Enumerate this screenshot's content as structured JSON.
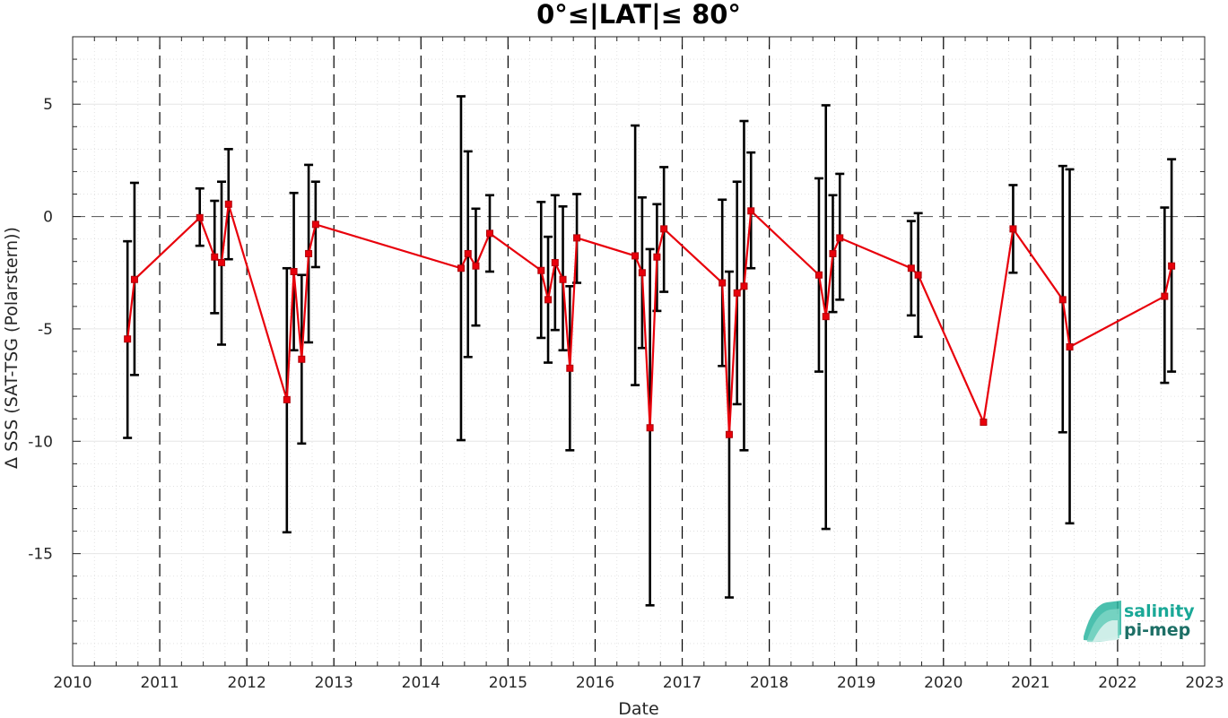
{
  "chart_data": {
    "type": "line",
    "title": "0°≤|LAT|≤ 80°",
    "xlabel": "Date",
    "ylabel": "Δ SSS (SAT-TSG (Polarstern))",
    "xlim": [
      2010,
      2023
    ],
    "ylim": [
      -20,
      8
    ],
    "x_ticks": [
      "2010",
      "2011",
      "2012",
      "2013",
      "2014",
      "2015",
      "2016",
      "2017",
      "2018",
      "2019",
      "2020",
      "2021",
      "2022",
      "2023"
    ],
    "y_ticks": [
      {
        "value": 5,
        "label": "5"
      },
      {
        "value": 0,
        "label": "0"
      },
      {
        "value": -5,
        "label": "-5"
      },
      {
        "value": -10,
        "label": "-10"
      },
      {
        "value": -15,
        "label": "-15"
      }
    ],
    "grid": true,
    "minor_grid": true,
    "zero_reference_line": true,
    "year_boundary_lines": "dashed",
    "colors": {
      "series": "#e8000b",
      "error_bars": "#000000",
      "logo": "#1aa897"
    },
    "series": [
      {
        "marker": "square",
        "points": [
          {
            "x": 2010.63,
            "y": -5.45,
            "lo": -9.85,
            "hi": -1.1
          },
          {
            "x": 2010.71,
            "y": -2.8,
            "lo": -7.05,
            "hi": 1.5
          },
          {
            "x": 2011.46,
            "y": -0.05,
            "lo": -1.3,
            "hi": 1.25
          },
          {
            "x": 2011.63,
            "y": -1.8,
            "lo": -4.3,
            "hi": 0.7
          },
          {
            "x": 2011.71,
            "y": -2.05,
            "lo": -5.7,
            "hi": 1.55
          },
          {
            "x": 2011.79,
            "y": 0.55,
            "lo": -1.9,
            "hi": 3.0
          },
          {
            "x": 2012.46,
            "y": -8.15,
            "lo": -14.05,
            "hi": -2.3
          },
          {
            "x": 2012.54,
            "y": -2.45,
            "lo": -5.95,
            "hi": 1.05
          },
          {
            "x": 2012.63,
            "y": -6.35,
            "lo": -10.1,
            "hi": -2.6
          },
          {
            "x": 2012.71,
            "y": -1.65,
            "lo": -5.6,
            "hi": 2.3
          },
          {
            "x": 2012.79,
            "y": -0.35,
            "lo": -2.25,
            "hi": 1.55
          },
          {
            "x": 2014.46,
            "y": -2.3,
            "lo": -9.95,
            "hi": 5.35
          },
          {
            "x": 2014.54,
            "y": -1.65,
            "lo": -6.25,
            "hi": 2.9
          },
          {
            "x": 2014.63,
            "y": -2.2,
            "lo": -4.85,
            "hi": 0.35
          },
          {
            "x": 2014.79,
            "y": -0.75,
            "lo": -2.45,
            "hi": 0.95
          },
          {
            "x": 2015.38,
            "y": -2.4,
            "lo": -5.4,
            "hi": 0.65
          },
          {
            "x": 2015.46,
            "y": -3.7,
            "lo": -6.5,
            "hi": -0.9
          },
          {
            "x": 2015.54,
            "y": -2.05,
            "lo": -5.05,
            "hi": 0.95
          },
          {
            "x": 2015.63,
            "y": -2.8,
            "lo": -5.95,
            "hi": 0.45
          },
          {
            "x": 2015.71,
            "y": -6.75,
            "lo": -10.4,
            "hi": -3.1
          },
          {
            "x": 2015.79,
            "y": -0.95,
            "lo": -2.95,
            "hi": 1.0
          },
          {
            "x": 2016.46,
            "y": -1.75,
            "lo": -7.5,
            "hi": 4.05
          },
          {
            "x": 2016.54,
            "y": -2.5,
            "lo": -5.85,
            "hi": 0.85
          },
          {
            "x": 2016.63,
            "y": -9.4,
            "lo": -17.3,
            "hi": -1.45
          },
          {
            "x": 2016.71,
            "y": -1.8,
            "lo": -4.2,
            "hi": 0.55
          },
          {
            "x": 2016.79,
            "y": -0.55,
            "lo": -3.35,
            "hi": 2.2
          },
          {
            "x": 2017.46,
            "y": -2.95,
            "lo": -6.65,
            "hi": 0.75
          },
          {
            "x": 2017.54,
            "y": -9.7,
            "lo": -16.95,
            "hi": -2.45
          },
          {
            "x": 2017.63,
            "y": -3.4,
            "lo": -8.35,
            "hi": 1.55
          },
          {
            "x": 2017.71,
            "y": -3.1,
            "lo": -10.4,
            "hi": 4.25
          },
          {
            "x": 2017.79,
            "y": 0.25,
            "lo": -2.3,
            "hi": 2.85
          },
          {
            "x": 2018.57,
            "y": -2.6,
            "lo": -6.9,
            "hi": 1.7
          },
          {
            "x": 2018.65,
            "y": -4.45,
            "lo": -13.9,
            "hi": 4.95
          },
          {
            "x": 2018.73,
            "y": -1.65,
            "lo": -4.25,
            "hi": 0.95
          },
          {
            "x": 2018.81,
            "y": -0.95,
            "lo": -3.7,
            "hi": 1.9
          },
          {
            "x": 2019.63,
            "y": -2.3,
            "lo": -4.4,
            "hi": -0.2
          },
          {
            "x": 2019.71,
            "y": -2.6,
            "lo": -5.35,
            "hi": 0.15
          },
          {
            "x": 2020.46,
            "y": -9.15,
            "lo": null,
            "hi": null
          },
          {
            "x": 2020.8,
            "y": -0.55,
            "lo": -2.5,
            "hi": 1.4
          },
          {
            "x": 2021.37,
            "y": -3.7,
            "lo": -9.6,
            "hi": 2.25
          },
          {
            "x": 2021.45,
            "y": -5.8,
            "lo": -13.65,
            "hi": 2.1
          },
          {
            "x": 2022.54,
            "y": -3.55,
            "lo": -7.4,
            "hi": 0.4
          },
          {
            "x": 2022.62,
            "y": -2.2,
            "lo": -6.9,
            "hi": 2.55
          }
        ]
      }
    ]
  },
  "logo": {
    "line1": "salinity",
    "line2": "pi-mep"
  }
}
